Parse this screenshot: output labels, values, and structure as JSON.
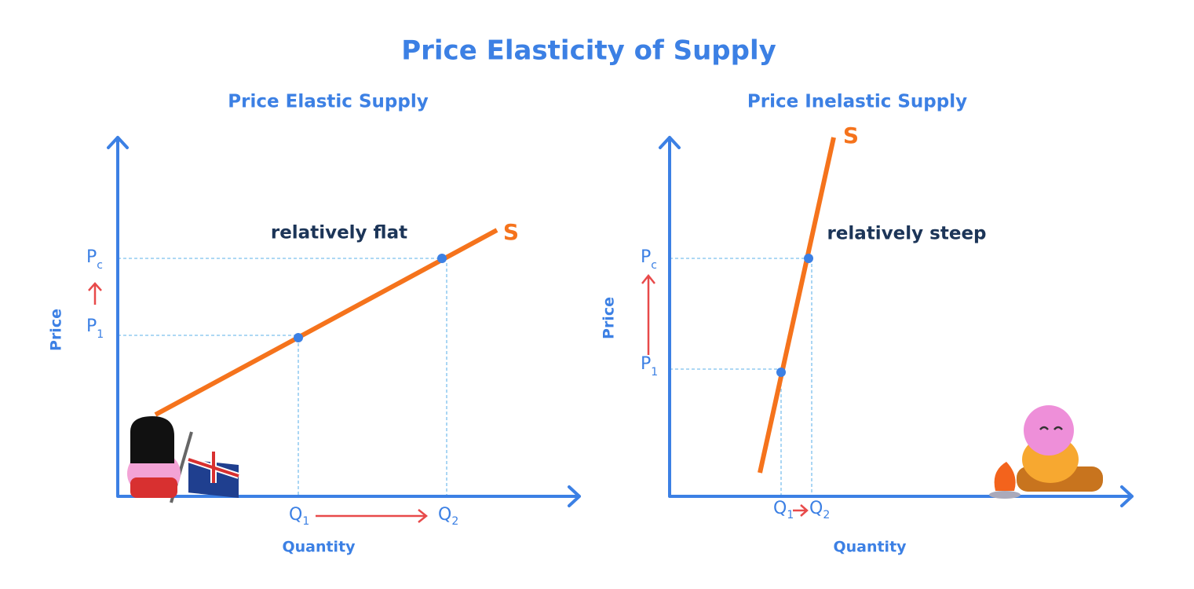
{
  "title": "Price Elasticity of Supply",
  "panels": [
    {
      "title": "Price Elastic Supply",
      "annotation": "relatively flat",
      "curve_label": "S",
      "y_axis_label": "Price",
      "x_axis_label": "Quantity",
      "price_labels": [
        {
          "main": "P",
          "sub": "c"
        },
        {
          "main": "P",
          "sub": "1"
        }
      ],
      "quantity_labels": [
        {
          "main": "Q",
          "sub": "1"
        },
        {
          "main": "Q",
          "sub": "2"
        }
      ]
    },
    {
      "title": "Price Inelastic Supply",
      "annotation": "relatively steep",
      "curve_label": "S",
      "y_axis_label": "Price",
      "x_axis_label": "Quantity",
      "price_labels": [
        {
          "main": "P",
          "sub": "c"
        },
        {
          "main": "P",
          "sub": "1"
        }
      ],
      "quantity_labels": [
        {
          "main": "Q",
          "sub": "1"
        },
        {
          "main": "Q",
          "sub": "2"
        }
      ]
    }
  ]
}
